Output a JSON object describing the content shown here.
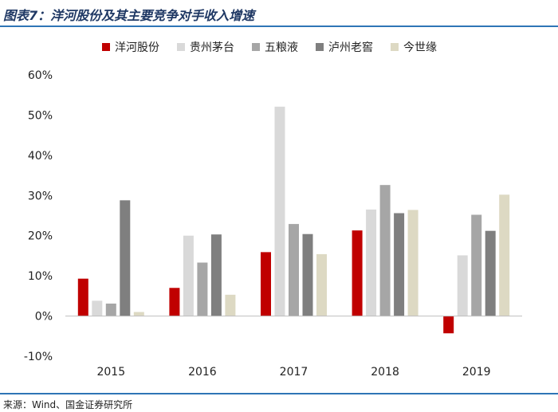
{
  "title": "图表7：洋河股份及其主要竞争对手收入增速",
  "source": "来源：Wind、国金证券研究所",
  "chart_data": {
    "type": "bar",
    "categories": [
      "2015",
      "2016",
      "2017",
      "2018",
      "2019"
    ],
    "series": [
      {
        "name": "洋河股份",
        "color": "#c00000",
        "values": [
          9.3,
          7.0,
          15.9,
          21.3,
          -4.3
        ]
      },
      {
        "name": "贵州茅台",
        "color": "#d9d9d9",
        "values": [
          3.8,
          20.0,
          52.1,
          26.5,
          15.1
        ]
      },
      {
        "name": "五粮液",
        "color": "#a6a6a6",
        "values": [
          3.1,
          13.3,
          22.9,
          32.6,
          25.2
        ]
      },
      {
        "name": "泸州老窖",
        "color": "#7f7f7f",
        "values": [
          28.8,
          20.3,
          20.4,
          25.6,
          21.2
        ]
      },
      {
        "name": "今世缘",
        "color": "#ddd9c3",
        "values": [
          1.0,
          5.3,
          15.4,
          26.4,
          30.2
        ]
      }
    ],
    "ylim": [
      -10,
      60
    ],
    "yticks": [
      -10,
      0,
      10,
      20,
      30,
      40,
      50,
      60
    ],
    "ytick_labels": [
      "-10%",
      "0%",
      "10%",
      "20%",
      "30%",
      "40%",
      "50%",
      "60%"
    ],
    "legend": "top",
    "grid": false
  }
}
